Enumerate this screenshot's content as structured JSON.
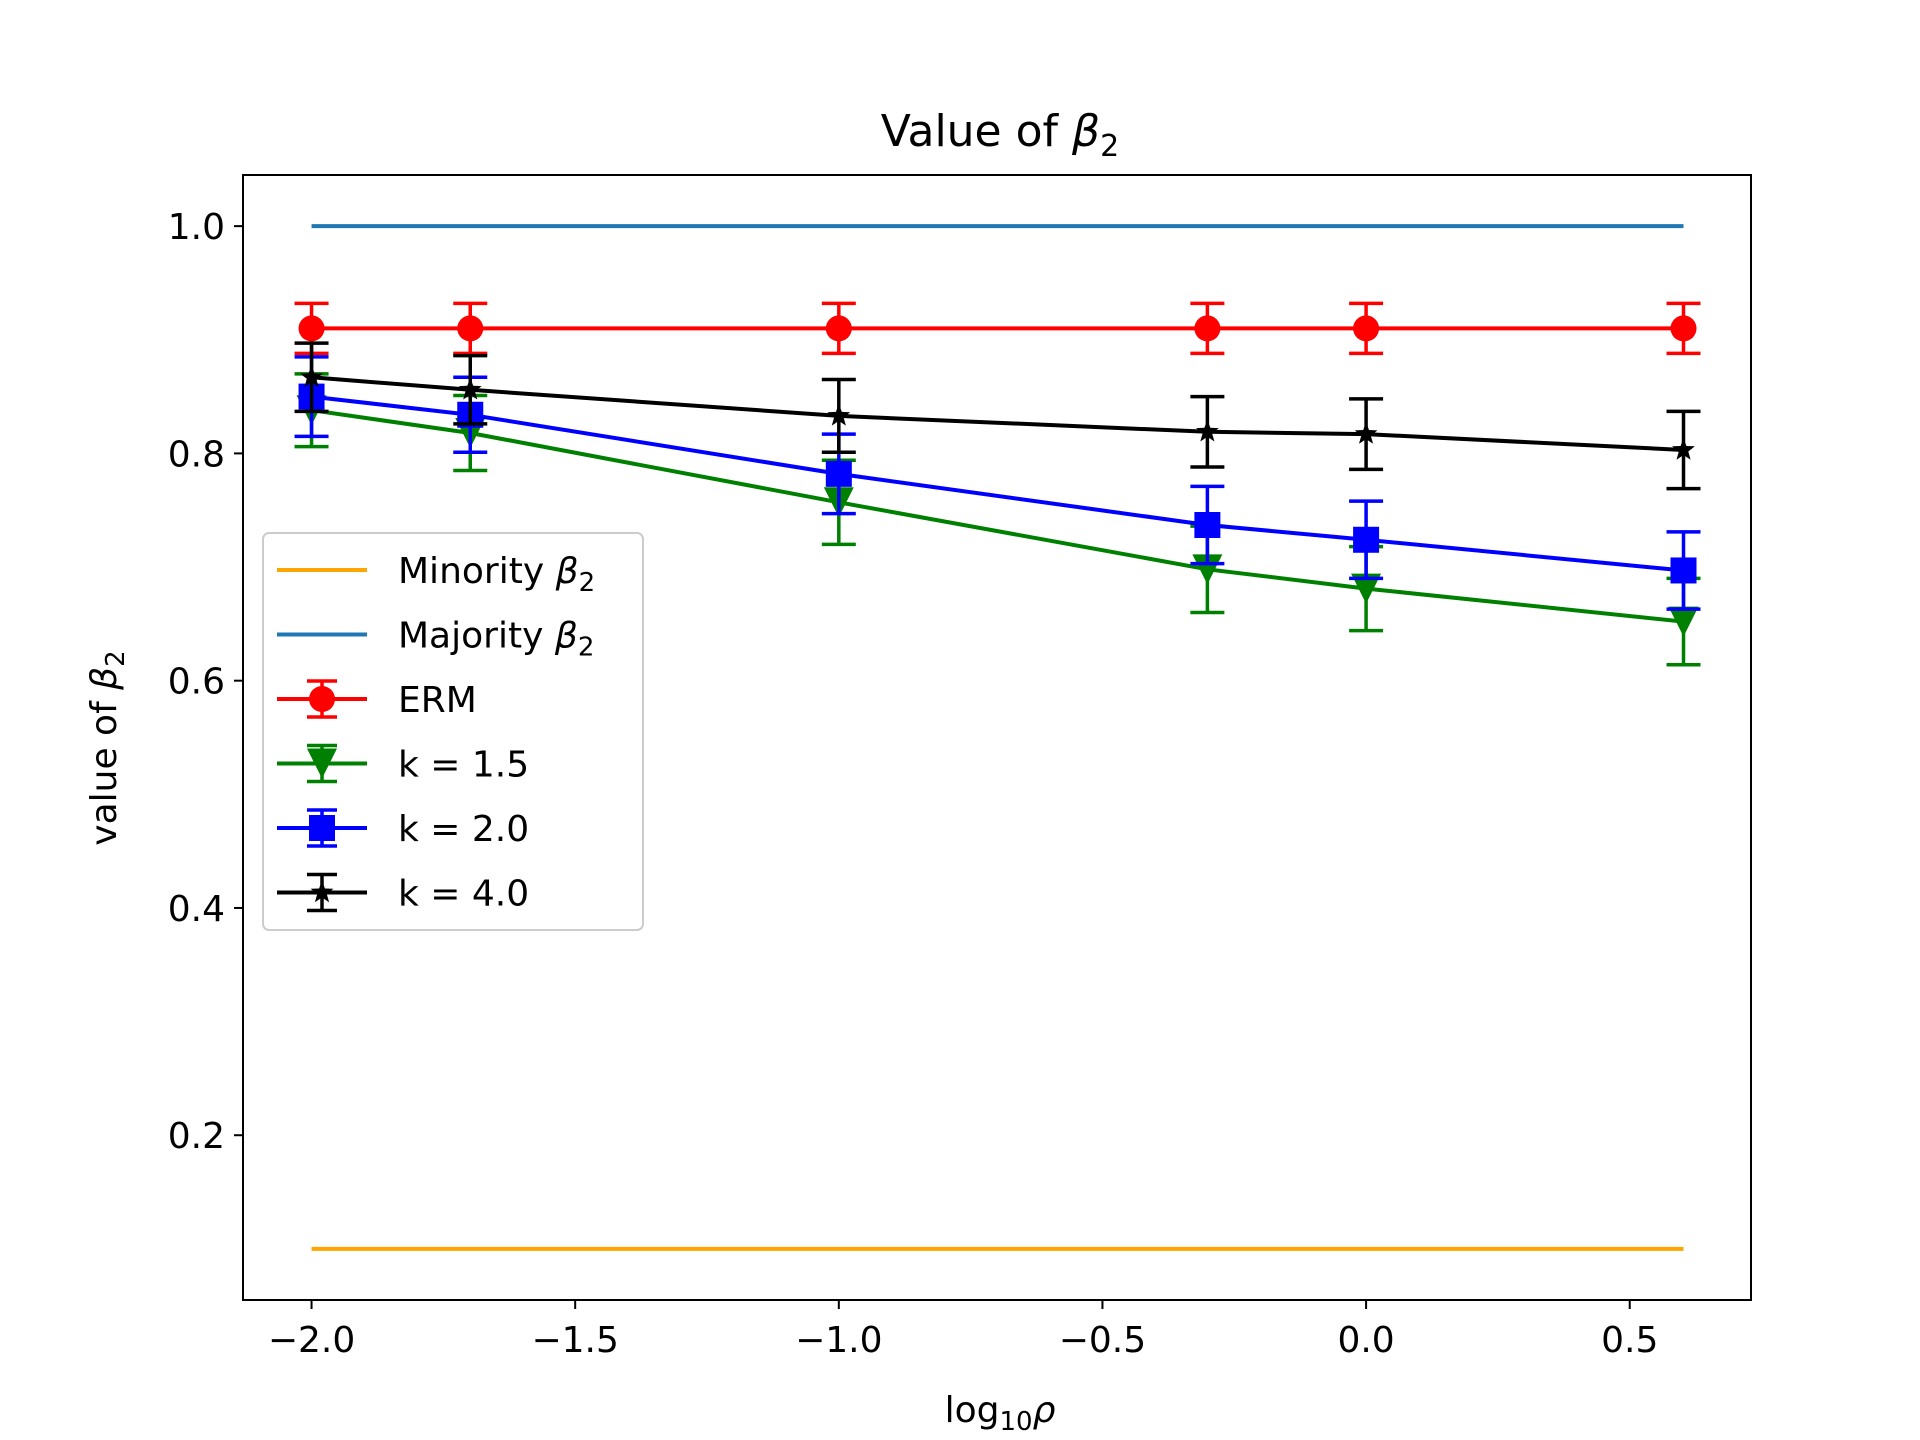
{
  "chart_data": {
    "type": "line",
    "title": "Value of ",
    "title_symbol": "β",
    "title_sub": "2",
    "xlabel": "log",
    "xlabel_sub": "10",
    "xlabel_symbol": "ρ",
    "ylabel": "value of ",
    "ylabel_symbol": "β",
    "ylabel_sub": "2",
    "xlim": [
      -2.13,
      0.73
    ],
    "ylim": [
      0.055,
      1.045
    ],
    "xticks": [
      {
        "value": -2.0,
        "label": "−2.0"
      },
      {
        "value": -1.5,
        "label": "−1.5"
      },
      {
        "value": -1.0,
        "label": "−1.0"
      },
      {
        "value": -0.5,
        "label": "−0.5"
      },
      {
        "value": 0.0,
        "label": "0.0"
      },
      {
        "value": 0.5,
        "label": "0.5"
      }
    ],
    "yticks": [
      {
        "value": 0.2,
        "label": "0.2"
      },
      {
        "value": 0.4,
        "label": "0.4"
      },
      {
        "value": 0.6,
        "label": "0.6"
      },
      {
        "value": 0.8,
        "label": "0.8"
      },
      {
        "value": 1.0,
        "label": "1.0"
      }
    ],
    "grid": false,
    "legend_position": "center-left",
    "x": [
      -2.0,
      -1.699,
      -1.0,
      -0.301,
      0.0,
      0.602
    ],
    "reference_lines": [
      {
        "name": "Minority ",
        "symbol": "β",
        "sub": "2",
        "color": "#ffa500",
        "value": 0.1
      },
      {
        "name": "Majority ",
        "symbol": "β",
        "sub": "2",
        "color": "#1f77b4",
        "value": 1.0
      }
    ],
    "series": [
      {
        "name": "ERM",
        "color": "#ff0000",
        "marker": "circle",
        "values": [
          0.91,
          0.91,
          0.91,
          0.91,
          0.91,
          0.91
        ],
        "errors": [
          0.022,
          0.022,
          0.022,
          0.022,
          0.022,
          0.022
        ]
      },
      {
        "name": "k = 1.5",
        "color": "#008000",
        "marker": "triangle-down",
        "values": [
          0.838,
          0.818,
          0.757,
          0.698,
          0.681,
          0.652
        ],
        "errors": [
          0.032,
          0.033,
          0.037,
          0.038,
          0.037,
          0.038
        ]
      },
      {
        "name": "k = 2.0",
        "color": "#0000ff",
        "marker": "square",
        "values": [
          0.85,
          0.834,
          0.782,
          0.737,
          0.724,
          0.697
        ],
        "errors": [
          0.035,
          0.033,
          0.035,
          0.034,
          0.034,
          0.034
        ]
      },
      {
        "name": "k = 4.0",
        "color": "#000000",
        "marker": "star",
        "values": [
          0.867,
          0.856,
          0.833,
          0.819,
          0.817,
          0.803
        ],
        "errors": [
          0.03,
          0.03,
          0.032,
          0.031,
          0.031,
          0.034
        ]
      }
    ]
  }
}
